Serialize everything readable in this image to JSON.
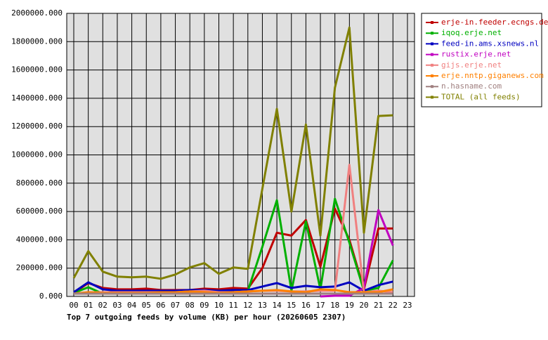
{
  "chart_data": {
    "type": "line",
    "title": "Top 7 outgoing feeds by volume (KB) per hour (20260605 2307)",
    "categories": [
      "00",
      "01",
      "02",
      "03",
      "04",
      "05",
      "06",
      "07",
      "08",
      "09",
      "10",
      "11",
      "12",
      "13",
      "14",
      "15",
      "16",
      "17",
      "18",
      "19",
      "20",
      "21",
      "22",
      "23"
    ],
    "ylim": [
      0,
      2000000
    ],
    "yticks": [
      {
        "value": 0,
        "label": "0.000"
      },
      {
        "value": 200000,
        "label": "200000.000"
      },
      {
        "value": 400000,
        "label": "400000.000"
      },
      {
        "value": 600000,
        "label": "600000.000"
      },
      {
        "value": 800000,
        "label": "800000.000"
      },
      {
        "value": 1000000,
        "label": "1000000.000"
      },
      {
        "value": 1200000,
        "label": "1200000.000"
      },
      {
        "value": 1400000,
        "label": "1400000.000"
      },
      {
        "value": 1600000,
        "label": "1600000.000"
      },
      {
        "value": 1800000,
        "label": "1800000.000"
      },
      {
        "value": 2000000,
        "label": "2000000.000"
      }
    ],
    "grid": true,
    "legend": "right",
    "series": [
      {
        "name": "erje-in.feeder.ecngs.de",
        "color": "#c00000",
        "values": [
          25000,
          95000,
          60000,
          50000,
          50000,
          55000,
          45000,
          45000,
          45000,
          55000,
          50000,
          60000,
          55000,
          200000,
          450000,
          430000,
          540000,
          210000,
          620000,
          400000,
          50000,
          480000,
          480000,
          null
        ]
      },
      {
        "name": "iqoq.erje.net",
        "color": "#00b000",
        "values": [
          25000,
          65000,
          20000,
          20000,
          20000,
          20000,
          20000,
          25000,
          35000,
          35000,
          20000,
          20000,
          40000,
          350000,
          680000,
          40000,
          530000,
          50000,
          690000,
          380000,
          40000,
          60000,
          255000,
          null
        ]
      },
      {
        "name": "feed-in.ams.xsnews.nl",
        "color": "#0000c0",
        "values": [
          30000,
          100000,
          50000,
          40000,
          40000,
          40000,
          40000,
          40000,
          45000,
          45000,
          40000,
          45000,
          45000,
          70000,
          95000,
          60000,
          75000,
          65000,
          70000,
          100000,
          40000,
          80000,
          105000,
          null
        ]
      },
      {
        "name": "rustix.erje.net",
        "color": "#c000c0",
        "values": [
          null,
          null,
          null,
          null,
          null,
          null,
          null,
          null,
          null,
          null,
          null,
          null,
          null,
          null,
          null,
          null,
          null,
          0,
          5000,
          5000,
          60000,
          610000,
          360000,
          null
        ]
      },
      {
        "name": "gijs.erje.net",
        "color": "#f08080",
        "values": [
          20000,
          30000,
          30000,
          30000,
          30000,
          30000,
          30000,
          30000,
          35000,
          40000,
          30000,
          30000,
          35000,
          40000,
          40000,
          35000,
          35000,
          40000,
          40000,
          930000,
          30000,
          40000,
          30000,
          null
        ]
      },
      {
        "name": "erje.nntp.giganews.com",
        "color": "#ff8000",
        "values": [
          20000,
          30000,
          25000,
          25000,
          25000,
          25000,
          30000,
          30000,
          35000,
          30000,
          25000,
          30000,
          35000,
          40000,
          45000,
          35000,
          30000,
          50000,
          45000,
          30000,
          30000,
          30000,
          50000,
          null
        ]
      },
      {
        "name": "n.hasname.com",
        "color": "#a08080",
        "values": [
          20000,
          20000,
          20000,
          20000,
          20000,
          20000,
          20000,
          20000,
          20000,
          20000,
          20000,
          20000,
          20000,
          20000,
          20000,
          20000,
          20000,
          20000,
          20000,
          20000,
          20000,
          20000,
          20000,
          null
        ]
      },
      {
        "name": "TOTAL (all feeds)",
        "color": "#808000",
        "values": [
          130000,
          320000,
          175000,
          140000,
          135000,
          140000,
          125000,
          155000,
          205000,
          235000,
          160000,
          205000,
          195000,
          760000,
          1325000,
          600000,
          1215000,
          430000,
          1475000,
          1900000,
          450000,
          1275000,
          1280000,
          null
        ]
      }
    ]
  }
}
